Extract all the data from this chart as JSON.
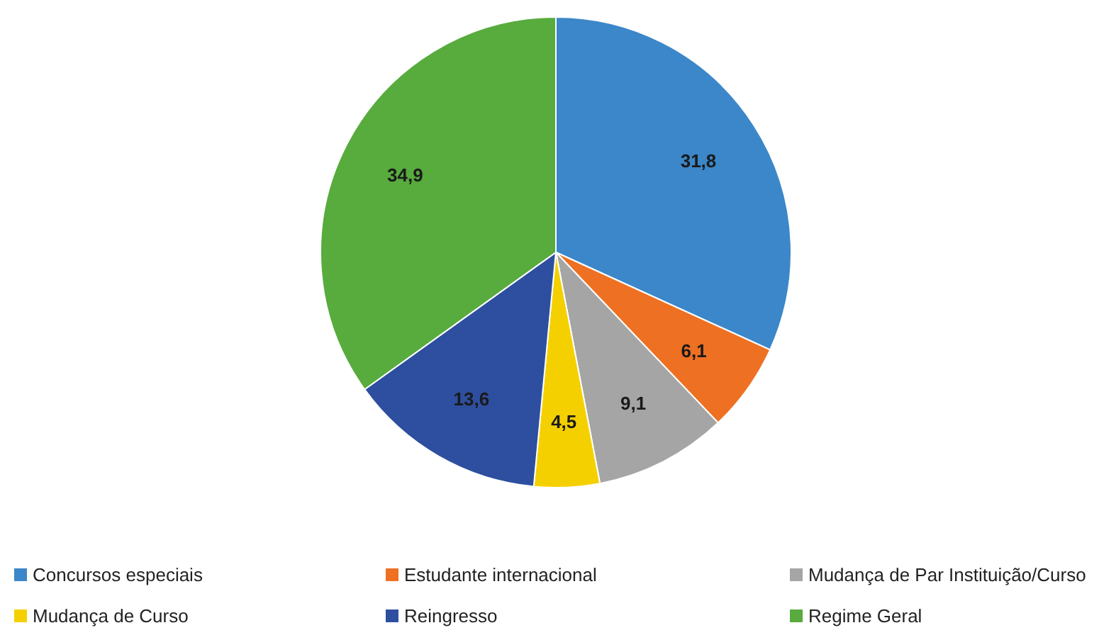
{
  "chart_data": {
    "type": "pie",
    "categories": [
      "Concursos especiais",
      "Estudante internacional",
      "Mudança de Par Instituição/Curso",
      "Mudança de Curso",
      "Reingresso",
      "Regime Geral"
    ],
    "values": [
      31.8,
      6.1,
      9.1,
      4.5,
      13.6,
      34.9
    ],
    "colors": [
      "#3b87c9",
      "#ee7022",
      "#a5a5a5",
      "#f5d000",
      "#2e4f9f",
      "#58ab3d"
    ],
    "value_labels": [
      "31,8",
      "6,1",
      "9,1",
      "4,5",
      "13,6",
      "34,9"
    ],
    "legend": "bottom"
  }
}
